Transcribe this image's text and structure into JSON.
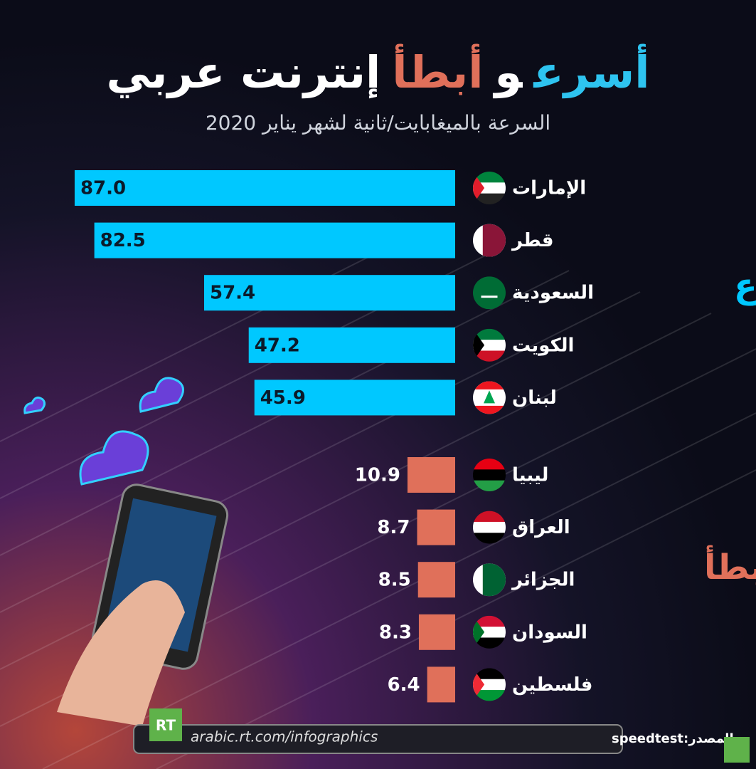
{
  "chart_data": {
    "type": "bar",
    "title": [
      {
        "text": "أسرع",
        "color": "#2ec4f0"
      },
      {
        "text": "و",
        "color": "#ffffff"
      },
      {
        "text": "أبطأ",
        "color": "#e0705a"
      },
      {
        "text": "إنترنت عربي",
        "color": "#ffffff"
      }
    ],
    "subtitle": "السرعة بالميغابايت/ثانية لشهر يناير 2020",
    "series": [
      {
        "name": "الأسرع",
        "color": "#00c8ff",
        "categories": [
          "الإمارات",
          "قطر",
          "السعودية",
          "الكويت",
          "لبنان"
        ],
        "values": [
          87,
          82.5,
          57.4,
          47.2,
          45.9
        ],
        "value_labels": [
          "87.0",
          "82.5",
          "57.4",
          "47.2",
          "45.9"
        ]
      },
      {
        "name": "الأبطأ",
        "color": "#e0705a",
        "categories": [
          "ليبيا",
          "العراق",
          "الجزائر",
          "السودان",
          "فلسطين"
        ],
        "values": [
          10.9,
          8.7,
          8.5,
          8.3,
          6.4
        ],
        "value_labels": [
          "10.9",
          "8.7",
          "8.5",
          "8.3",
          "6.4"
        ]
      }
    ],
    "source": "المصدر:speedtest",
    "website": "arabic.rt.com/infographics",
    "logo": "RT"
  }
}
